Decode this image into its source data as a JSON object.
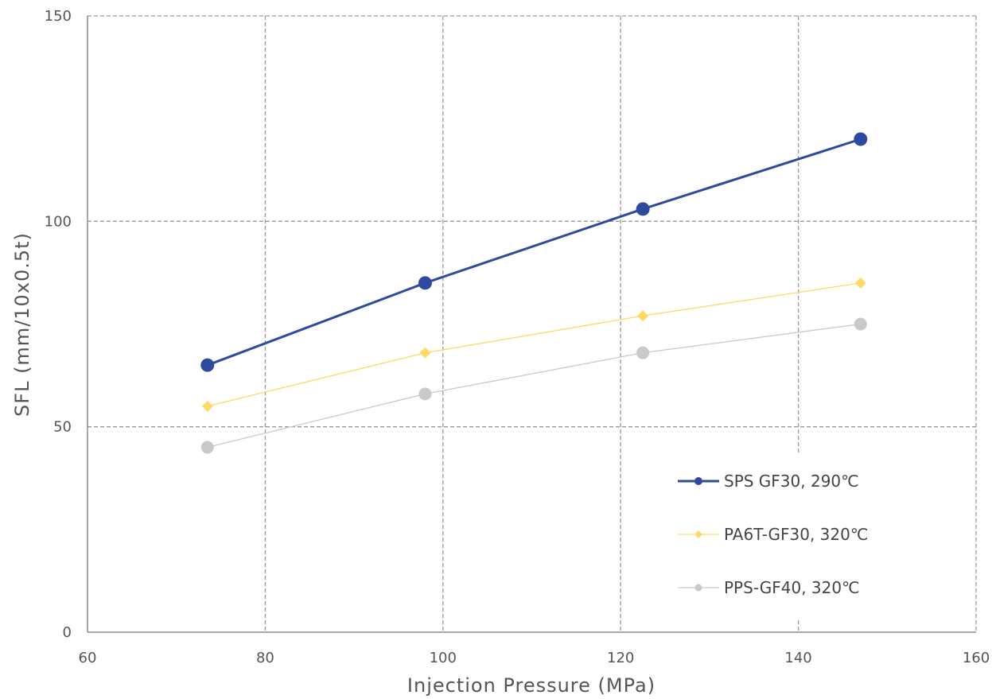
{
  "chart_data": {
    "type": "line",
    "title": "",
    "xlabel": "Injection Pressure (MPa)",
    "ylabel": "SFL (mm/10x0.5t)",
    "xlim": [
      60,
      160
    ],
    "ylim": [
      0,
      150
    ],
    "x_ticks": [
      "60",
      "80",
      "100",
      "120",
      "140",
      "160"
    ],
    "y_ticks": [
      "0",
      "50",
      "100",
      "150"
    ],
    "grid": true,
    "legend_position": "bottom-right",
    "series": [
      {
        "name": "SPS GF30, 290℃",
        "color": "#2e4a9e",
        "marker": "circle",
        "points": [
          [
            73.5,
            65
          ],
          [
            98,
            85
          ],
          [
            122.5,
            103
          ],
          [
            147,
            120
          ]
        ]
      },
      {
        "name": "PA6T-GF30, 320℃",
        "color": "#ffd966",
        "marker": "diamond",
        "points": [
          [
            73.5,
            55
          ],
          [
            98,
            68
          ],
          [
            122.5,
            77
          ],
          [
            147,
            85
          ]
        ]
      },
      {
        "name": "PPS-GF40, 320℃",
        "color": "#c9c9c9",
        "marker": "circle",
        "points": [
          [
            73.5,
            45
          ],
          [
            98,
            58
          ],
          [
            122.5,
            68
          ],
          [
            147,
            75
          ]
        ]
      }
    ]
  }
}
